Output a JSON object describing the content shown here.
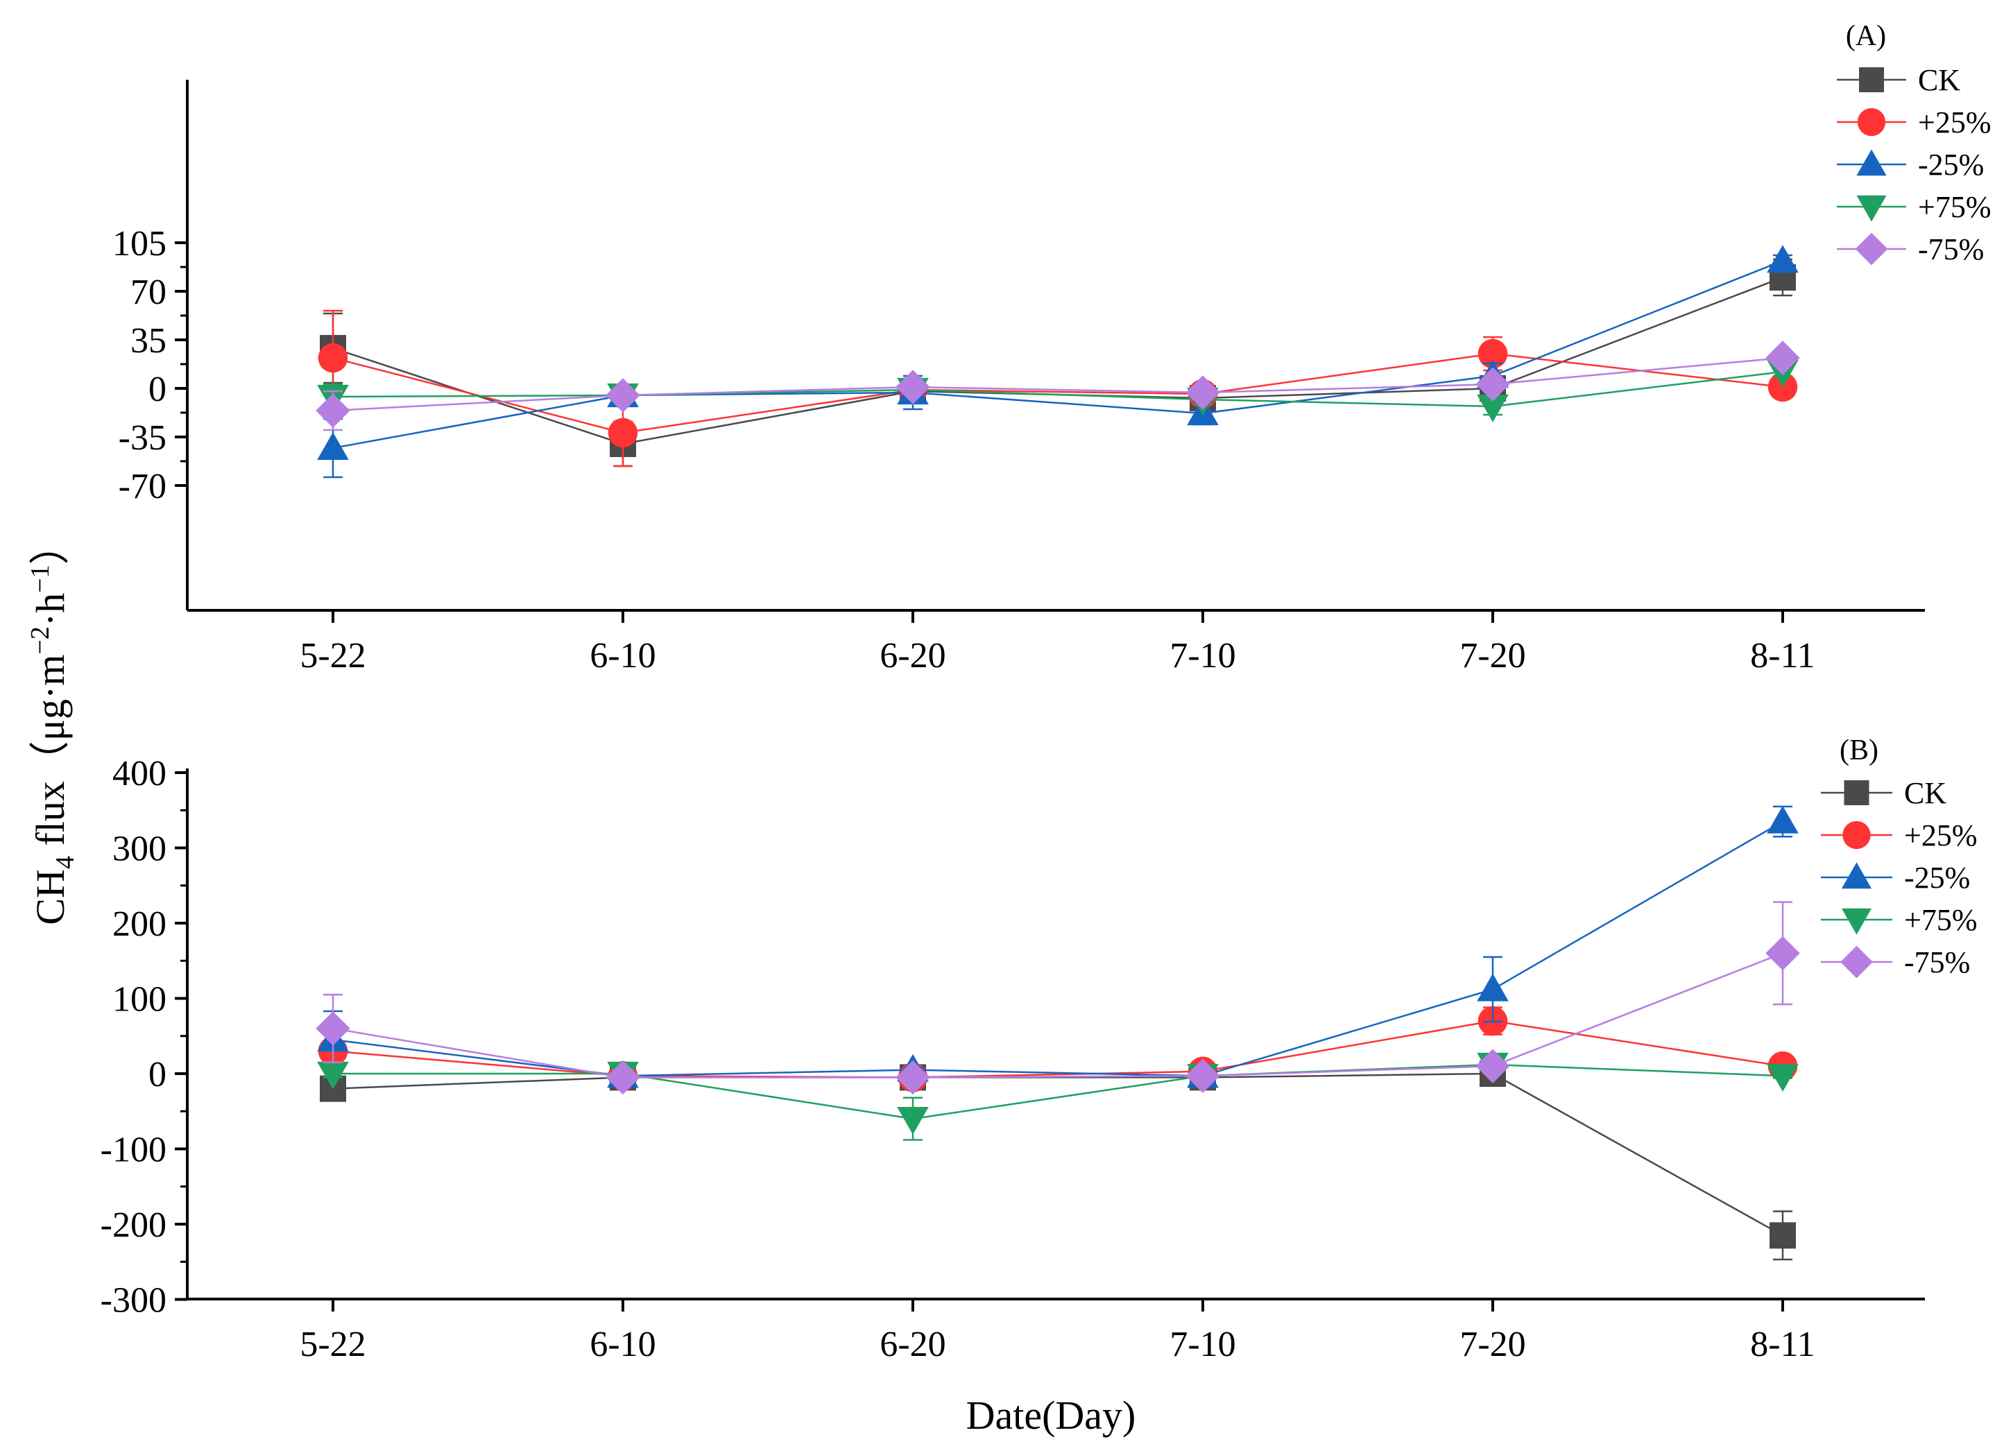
{
  "chart_data": [
    {
      "type": "line",
      "panel_label": "(A)",
      "categories": [
        "5-22",
        "6-10",
        "6-20",
        "7-10",
        "7-20",
        "8-11"
      ],
      "yticks": [
        "105",
        "70",
        "35",
        "0",
        "-35",
        "-70"
      ],
      "ylim": [
        -80,
        108
      ],
      "legend_position": "top-right",
      "error_bars": true,
      "series": [
        {
          "name": "CK",
          "marker": "square",
          "color": "#4a4a4a",
          "values": [
            29,
            -40,
            -2,
            -7,
            0,
            80
          ],
          "errors": [
            25,
            16,
            3,
            3,
            3,
            13
          ]
        },
        {
          "name": "+25%",
          "marker": "circle",
          "color": "#ff3333",
          "values": [
            22,
            -32,
            -1,
            -4,
            25,
            1
          ],
          "errors": [
            34,
            24,
            3,
            3,
            12,
            3
          ]
        },
        {
          "name": "-25%",
          "marker": "triangle-up",
          "color": "#1565c0",
          "values": [
            -43,
            -5,
            -3,
            -18,
            9,
            92
          ],
          "errors": [
            21,
            3,
            12,
            8,
            9,
            4
          ]
        },
        {
          "name": "+75%",
          "marker": "triangle-down",
          "color": "#1fa060",
          "values": [
            -6,
            -5,
            -1,
            -8,
            -13,
            12
          ],
          "errors": [
            9,
            2,
            3,
            3,
            6,
            3
          ]
        },
        {
          "name": "-75%",
          "marker": "diamond",
          "color": "#b57ee0",
          "values": [
            -16,
            -5,
            1,
            -3,
            3,
            22
          ],
          "errors": [
            14,
            2,
            3,
            3,
            5,
            5
          ]
        }
      ]
    },
    {
      "type": "line",
      "panel_label": "(B)",
      "categories": [
        "5-22",
        "6-10",
        "6-20",
        "7-10",
        "7-20",
        "8-11"
      ],
      "yticks": [
        "400",
        "300",
        "200",
        "100",
        "0",
        "-100",
        "-200",
        "-300"
      ],
      "ylim": [
        -300,
        400
      ],
      "legend_position": "top-right",
      "error_bars": true,
      "series": [
        {
          "name": "CK",
          "marker": "square",
          "color": "#4a4a4a",
          "values": [
            -20,
            -5,
            -5,
            -5,
            0,
            -215
          ],
          "errors": [
            8,
            3,
            3,
            3,
            3,
            32
          ]
        },
        {
          "name": "+25%",
          "marker": "circle",
          "color": "#ff3333",
          "values": [
            30,
            -3,
            -5,
            3,
            70,
            10
          ],
          "errors": [
            10,
            3,
            3,
            3,
            18,
            5
          ]
        },
        {
          "name": "-25%",
          "marker": "triangle-up",
          "color": "#1565c0",
          "values": [
            45,
            -3,
            5,
            -3,
            112,
            335
          ],
          "errors": [
            38,
            3,
            3,
            3,
            43,
            20
          ]
        },
        {
          "name": "+75%",
          "marker": "triangle-down",
          "color": "#1fa060",
          "values": [
            0,
            0,
            -60,
            -3,
            12,
            -3
          ],
          "errors": [
            5,
            3,
            28,
            3,
            5,
            3
          ]
        },
        {
          "name": "-75%",
          "marker": "diamond",
          "color": "#b57ee0",
          "values": [
            60,
            -5,
            -5,
            -3,
            10,
            160
          ],
          "errors": [
            45,
            3,
            3,
            3,
            5,
            68
          ]
        }
      ]
    }
  ],
  "axes": {
    "ylabel_main": "CH",
    "ylabel_sub": "4",
    "ylabel_mid": " flux（μg·m",
    "ylabel_sup1": "−2",
    "ylabel_mid2": "·h",
    "ylabel_sup2": "−1",
    "ylabel_end": "）",
    "xlabel": "Date(Day)"
  }
}
